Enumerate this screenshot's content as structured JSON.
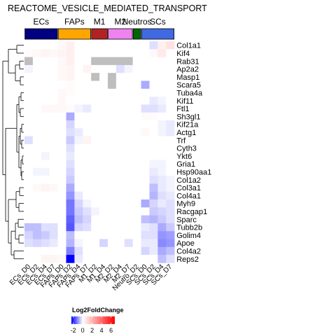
{
  "chart_data": {
    "type": "heatmap",
    "title": "REACTOME_VESICLE_MEDIATED_TRANSPORT",
    "groups": [
      {
        "label": "ECs",
        "color": "#000080",
        "span": 4
      },
      {
        "label": "FAPs",
        "color": "#FFA500",
        "span": 4
      },
      {
        "label": "M1",
        "color": "#B22222",
        "span": 2
      },
      {
        "label": "M2",
        "color": "#EE82EE",
        "span": 3
      },
      {
        "label": "Neutros",
        "color": "#006400",
        "span": 1
      },
      {
        "label": "SCs",
        "color": "#4169E1",
        "span": 4
      }
    ],
    "columns": [
      "ECs_D0",
      "ECs_D2",
      "ECs_D4",
      "ECs_D7",
      "FAPs_D0",
      "FAPs_D2",
      "FAPs_D4",
      "FAPs_D7",
      "M1_D2",
      "M1_D4",
      "M2_D2",
      "M2_D4",
      "M2_D7",
      "Neutro_D2",
      "SCs_D0",
      "SCs_D2",
      "SCs_D4",
      "SCs_D7"
    ],
    "rows": [
      "Col1a1",
      "Kif4",
      "Rab31",
      "Ap2a2",
      "Masp1",
      "Scara5",
      "Tuba4a",
      "Kif11",
      "Ftl1",
      "Sh3gl1",
      "Kif21a",
      "Actg1",
      "Trf",
      "Cyth3",
      "Ykt6",
      "Gria1",
      "Hsp90aa1",
      "Col1a2",
      "Col3a1",
      "Col4a1",
      "Myh9",
      "Racgap1",
      "Sparc",
      "Tubb2b",
      "Golim4",
      "Apoe",
      "Col4a2",
      "Reps2"
    ],
    "legend": {
      "title": "Log2FoldChange",
      "ticks": [
        -2,
        0,
        2,
        4,
        6
      ],
      "min": -2.4,
      "max": 6.8,
      "colors": {
        "low": "#0000FF",
        "mid": "#FFFFFF",
        "high": "#FF0000"
      },
      "na_color": "#BEBEBE"
    },
    "values": [
      [
        0,
        0,
        0,
        0,
        0.2,
        0.4,
        0,
        0,
        0,
        0,
        0,
        0,
        0,
        0,
        0,
        -0.3,
        0.4,
        0.8
      ],
      [
        0.1,
        0.2,
        0.3,
        0.2,
        0.3,
        0.4,
        0,
        0,
        0,
        0,
        0,
        0,
        0,
        0,
        0,
        0.2,
        0.6,
        0
      ],
      [
        null,
        0,
        0,
        0,
        0.2,
        0.4,
        0,
        0,
        null,
        null,
        null,
        null,
        null,
        0,
        0,
        0,
        0,
        0
      ],
      [
        -0.1,
        0,
        0,
        0,
        0.2,
        0.3,
        0,
        0.3,
        0,
        0,
        0,
        -0.3,
        -0.1,
        0,
        0,
        0,
        0,
        0
      ],
      [
        0,
        0,
        0,
        0,
        0.2,
        0.3,
        0,
        0,
        null,
        0,
        null,
        0,
        0,
        0,
        0,
        0,
        0,
        0
      ],
      [
        0,
        0,
        0,
        0,
        0,
        0.1,
        0,
        0,
        0,
        0,
        null,
        0,
        0,
        0,
        -0.8,
        0,
        0,
        0
      ],
      [
        0,
        0,
        0,
        0,
        0.2,
        0.1,
        0,
        0,
        0,
        0,
        0,
        0,
        0,
        0,
        0,
        0,
        0,
        0
      ],
      [
        0,
        0,
        0,
        0,
        0.2,
        0,
        0,
        0,
        0,
        0,
        0,
        0,
        0,
        0,
        0,
        -0.2,
        -0.1,
        0
      ],
      [
        0,
        0,
        0.2,
        0.2,
        0.2,
        0.1,
        -0.1,
        -0.2,
        0,
        0,
        0,
        0,
        0,
        0,
        -0.3,
        -0.3,
        -0.2,
        0
      ],
      [
        0,
        0,
        0,
        0,
        0,
        -0.8,
        0,
        0,
        0,
        0,
        0,
        0,
        0,
        0,
        0.1,
        0.1,
        0,
        0
      ],
      [
        0,
        0,
        0,
        0,
        0,
        -0.4,
        0,
        0,
        0,
        0,
        0,
        0,
        0,
        0,
        0,
        0,
        -0.1,
        -0.2
      ],
      [
        0,
        0,
        0,
        0,
        0,
        -0.3,
        -0.2,
        0,
        0,
        0,
        0,
        0,
        0,
        0,
        0.2,
        0,
        -0.1,
        -0.2
      ],
      [
        -0.3,
        0,
        0,
        0,
        0,
        -0.5,
        -0.1,
        0.3,
        0,
        0,
        0,
        0,
        0,
        0,
        0,
        0,
        0,
        0
      ],
      [
        0,
        0,
        0,
        0,
        0,
        -0.3,
        0,
        0,
        0,
        0,
        0,
        0,
        0,
        0,
        0,
        0,
        0,
        0
      ],
      [
        0,
        0,
        -0.1,
        0,
        0,
        -0.2,
        0,
        0,
        0,
        0,
        0,
        0,
        0,
        0,
        0,
        0,
        0,
        0
      ],
      [
        0,
        0,
        0,
        0,
        0,
        -0.3,
        0,
        0,
        0,
        0,
        0,
        0,
        0,
        0,
        0,
        -0.1,
        -0.1,
        0
      ],
      [
        0,
        -0.1,
        -0.1,
        0,
        0,
        -0.4,
        0,
        0,
        0,
        0,
        0,
        0,
        0,
        0,
        0,
        -0.2,
        -0.1,
        0
      ],
      [
        0,
        0,
        0,
        0,
        0,
        -0.5,
        0,
        0,
        0,
        0,
        0,
        0,
        0,
        0,
        0,
        -0.3,
        -0.2,
        -0.1
      ],
      [
        0,
        0.2,
        0.3,
        0.2,
        0,
        -0.8,
        0,
        0,
        0,
        0,
        0,
        0,
        0,
        0,
        0,
        -0.6,
        -0.2,
        -0.1
      ],
      [
        0,
        0,
        0,
        0,
        0,
        -1.0,
        -0.2,
        0,
        0,
        0,
        0,
        0,
        0,
        0,
        0,
        -0.7,
        -0.3,
        -0.2
      ],
      [
        0,
        0,
        0,
        0,
        0,
        -1.3,
        -0.4,
        -0.1,
        0,
        0,
        0,
        0,
        0,
        0,
        -0.8,
        -0.4,
        -0.2,
        -0.3
      ],
      [
        0,
        0,
        0,
        0,
        0,
        -1.3,
        -0.5,
        -0.3,
        -0.1,
        0,
        0,
        0,
        0,
        0,
        0,
        -0.5,
        -0.4,
        -0.3
      ],
      [
        0,
        0,
        0,
        0,
        0,
        -1.5,
        -0.6,
        -0.4,
        0,
        0,
        0,
        0,
        0,
        0,
        -0.6,
        -0.7,
        -0.5,
        -0.3
      ],
      [
        -0.6,
        -0.6,
        -0.3,
        -0.3,
        0,
        -1.6,
        -0.4,
        -0.3,
        0,
        0,
        0,
        0,
        0,
        0,
        -0.2,
        -0.3,
        -0.8,
        -0.5
      ],
      [
        -0.4,
        -0.6,
        -0.5,
        -0.3,
        0,
        -0.6,
        0,
        0,
        0,
        0,
        0,
        0,
        0,
        0,
        -0.3,
        -0.3,
        -1.0,
        -0.9
      ],
      [
        -0.3,
        -0.4,
        -0.3,
        -0.2,
        0,
        -0.7,
        -0.1,
        0,
        0,
        -0.4,
        0,
        0,
        -0.3,
        0,
        -0.2,
        -0.2,
        -1.1,
        -1.0
      ],
      [
        0,
        0,
        0,
        0,
        0,
        -1.2,
        -0.3,
        0,
        0,
        0,
        0,
        0,
        0,
        0,
        -0.4,
        -0.2,
        -0.8,
        -0.6
      ],
      [
        0,
        0,
        0.3,
        0.3,
        0.2,
        -2.4,
        -0.2,
        0,
        0,
        0,
        0,
        0,
        0,
        0,
        0,
        0,
        -0.6,
        -0.3
      ]
    ]
  }
}
